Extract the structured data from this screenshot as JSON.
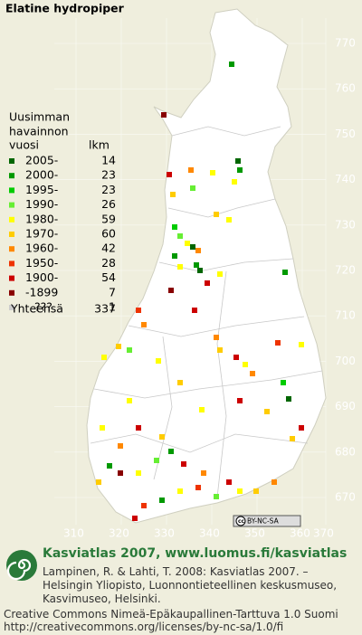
{
  "title": "Elatine hydropiper",
  "legend": {
    "heading": [
      "Uusimman",
      "havainnon"
    ],
    "col_year": "vuosi",
    "col_count": "lkm",
    "items": [
      {
        "label": "2005-",
        "count": 14,
        "color": "#006600"
      },
      {
        "label": "2000-",
        "count": 23,
        "color": "#009900"
      },
      {
        "label": "1995-",
        "count": 23,
        "color": "#00cc00"
      },
      {
        "label": "1990-",
        "count": 26,
        "color": "#66ee33"
      },
      {
        "label": "1980-",
        "count": 59,
        "color": "#ffff00"
      },
      {
        "label": "1970-",
        "count": 60,
        "color": "#ffcc00"
      },
      {
        "label": "1960-",
        "count": 42,
        "color": "#ff8800"
      },
      {
        "label": "1950-",
        "count": 28,
        "color": "#ee3300"
      },
      {
        "label": "1900-",
        "count": 54,
        "color": "#cc0000"
      },
      {
        "label": "-1899",
        "count": 7,
        "color": "#880000"
      },
      {
        "label": "???",
        "count": 1,
        "color": "#cccccc"
      }
    ],
    "total_label": "Yhteensä",
    "total": 337
  },
  "grid": {
    "y_labels": [
      "770",
      "760",
      "750",
      "740",
      "730",
      "720",
      "710",
      "700",
      "690",
      "680",
      "670"
    ],
    "x_labels": [
      "310",
      "320",
      "330",
      "340",
      "350",
      "360",
      "370"
    ]
  },
  "badge": "BY-NC-SA",
  "footer": {
    "headline": "Kasviatlas 2007, www.luomus.fi/kasviatlas",
    "citation": [
      "Lampinen, R. & Lahti, T. 2008: Kasviatlas 2007. –",
      "Helsingin Yliopisto, Luonnontieteellinen keskusmuseo,",
      "Kasvimuseo, Helsinki."
    ],
    "license": [
      "Creative Commons Nimeä-Epäkaupallinen-Tarttuva 1.0 Suomi",
      "http://creativecommons.org/licenses/by-nc-sa/1.0/fi"
    ]
  }
}
